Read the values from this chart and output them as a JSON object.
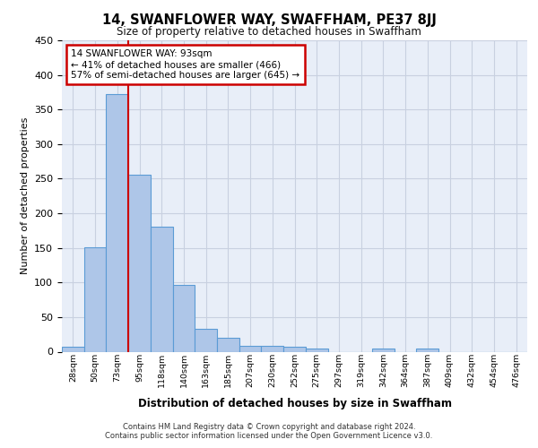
{
  "title": "14, SWANFLOWER WAY, SWAFFHAM, PE37 8JJ",
  "subtitle": "Size of property relative to detached houses in Swaffham",
  "xlabel": "Distribution of detached houses by size in Swaffham",
  "ylabel": "Number of detached properties",
  "categories": [
    "28sqm",
    "50sqm",
    "73sqm",
    "95sqm",
    "118sqm",
    "140sqm",
    "163sqm",
    "185sqm",
    "207sqm",
    "230sqm",
    "252sqm",
    "275sqm",
    "297sqm",
    "319sqm",
    "342sqm",
    "364sqm",
    "387sqm",
    "409sqm",
    "432sqm",
    "454sqm",
    "476sqm"
  ],
  "values": [
    7,
    151,
    372,
    256,
    181,
    96,
    33,
    20,
    9,
    9,
    7,
    4,
    0,
    0,
    4,
    0,
    4,
    0,
    0,
    0,
    0
  ],
  "bar_color": "#aec6e8",
  "bar_edge_color": "#5b9bd5",
  "grid_color": "#c8d0e0",
  "background_color": "#e8eef8",
  "property_line_color": "#cc0000",
  "annotation_text": "14 SWANFLOWER WAY: 93sqm\n← 41% of detached houses are smaller (466)\n57% of semi-detached houses are larger (645) →",
  "annotation_box_edge_color": "#cc0000",
  "ylim": [
    0,
    450
  ],
  "yticks": [
    0,
    50,
    100,
    150,
    200,
    250,
    300,
    350,
    400,
    450
  ],
  "footer_line1": "Contains HM Land Registry data © Crown copyright and database right 2024.",
  "footer_line2": "Contains public sector information licensed under the Open Government Licence v3.0."
}
